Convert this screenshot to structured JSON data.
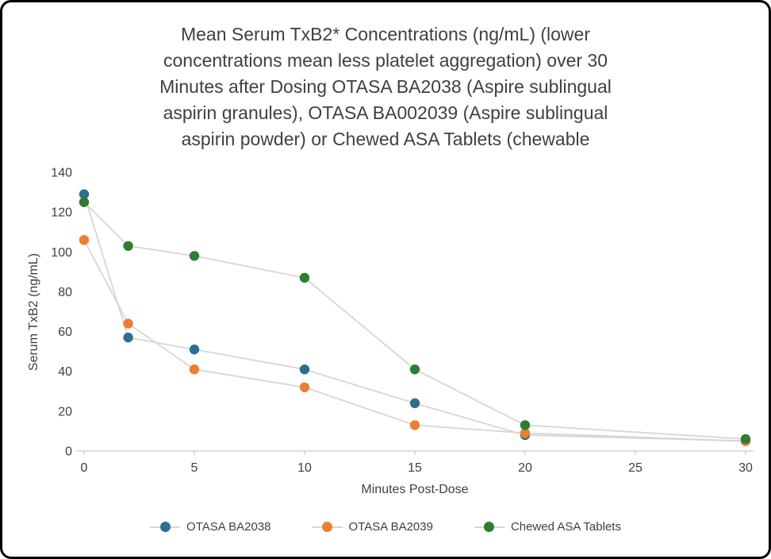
{
  "title": "Mean Serum TxB2* Concentrations (ng/mL) (lower\nconcentrations mean less platelet aggregation) over 30\nMinutes after Dosing OTASA BA2038 (Aspire sublingual\naspirin granules), OTASA BA002039 (Aspire sublingual\naspirin powder) or Chewed ASA Tablets (chewable",
  "chart_data": {
    "type": "line",
    "x": [
      0,
      2,
      5,
      10,
      15,
      20,
      30
    ],
    "series": [
      {
        "name": "OTASA BA2038",
        "color": "#2e6f8e",
        "values": [
          129,
          57,
          51,
          41,
          24,
          8,
          5
        ]
      },
      {
        "name": "OTASA BA2039",
        "color": "#ed7d31",
        "values": [
          106,
          64,
          41,
          32,
          13,
          9,
          5
        ]
      },
      {
        "name": "Chewed ASA Tablets",
        "color": "#2e7d32",
        "values": [
          125,
          103,
          98,
          87,
          41,
          13,
          6
        ]
      }
    ],
    "xlabel": "Minutes Post-Dose",
    "ylabel": "Serum TxB2 (ng/mL)",
    "xlim": [
      0,
      30
    ],
    "ylim": [
      0,
      140
    ],
    "xticks": [
      0,
      5,
      10,
      15,
      20,
      25,
      30
    ],
    "yticks": [
      0,
      20,
      40,
      60,
      80,
      100,
      120,
      140
    ],
    "line_color": "#d6d6d6",
    "axis_color": "#bfbfbf",
    "text_color": "#404040",
    "legend_position": "bottom",
    "grid": false
  }
}
